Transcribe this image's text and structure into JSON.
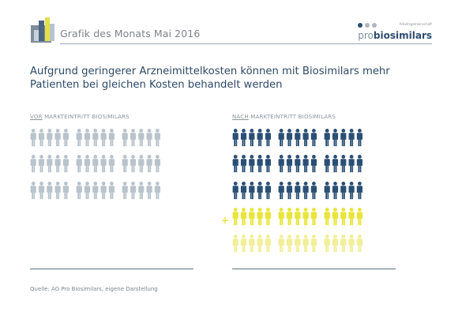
{
  "header": {
    "title": "Grafik des Monats Mai 2016"
  },
  "brand": {
    "tagline": "Arbeitsgemeinschaft",
    "prefix": "pro",
    "name": "biosimilars"
  },
  "headline": "Aufgrund geringerer Arzneimittelkosten können mit Biosimilars mehr Patienten bei gleichen Kosten behandelt werden",
  "source": "Quelle: AG Pro Biosimilars, eigene Darstellung",
  "chart_data": {
    "type": "pictogram",
    "panels": [
      {
        "label_prefix": "VOR",
        "label_rest": " MARKTEINTRITT BIOSIMILARS",
        "counts": {
          "base": 45,
          "additional": 0
        },
        "color_base": "#b9c3cc"
      },
      {
        "label_prefix": "NACH",
        "label_rest": " MARKTEINTRITT BIOSIMILARS",
        "counts": {
          "base": 45,
          "additional": 30
        },
        "color_base": "#2b4f74",
        "color_additional": "#e8e53a",
        "color_additional_light": "#f1ef98",
        "plus_symbol": "+"
      }
    ],
    "colors": {
      "grey": "#b9c3cc",
      "navy": "#2b4f74",
      "yellow": "#e8e53a",
      "yellow_light": "#f1ef98"
    }
  }
}
